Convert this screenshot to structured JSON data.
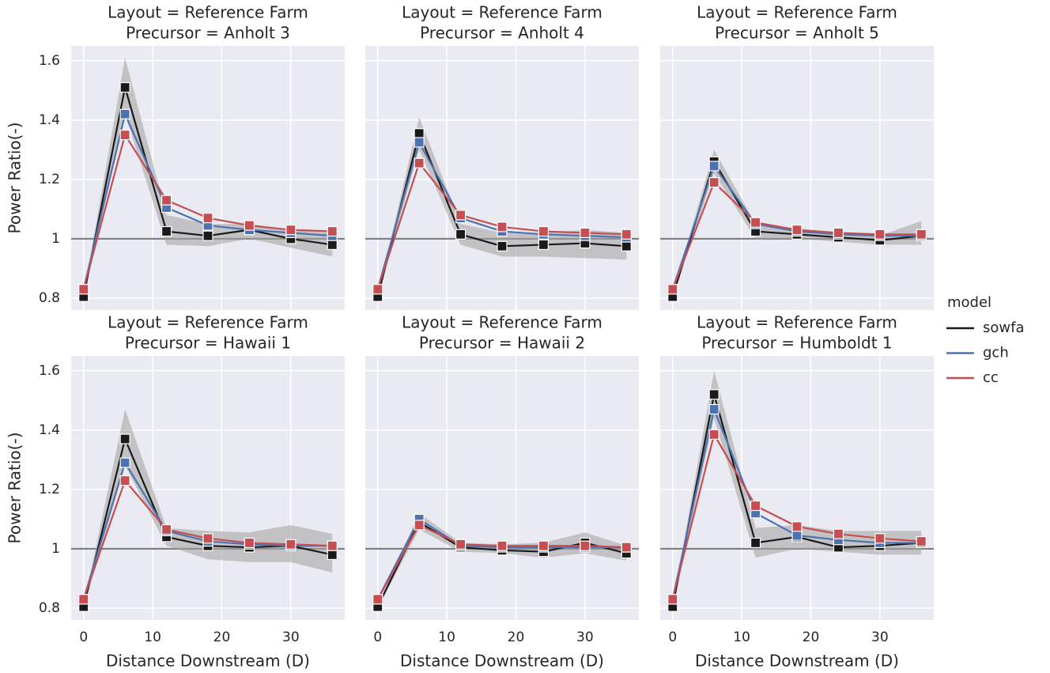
{
  "chart_data": [
    {
      "type": "line",
      "title": "Layout = Reference Farm",
      "subtitle": "Precursor = Anholt 3",
      "ylabel": "Power Ratio(-)",
      "x": [
        0,
        6,
        12,
        18,
        24,
        30,
        36
      ],
      "series": [
        {
          "name": "sowfa",
          "color": "#1a1a1a",
          "values": [
            0.805,
            1.51,
            1.025,
            1.01,
            1.03,
            1.0,
            0.98
          ],
          "ci_lower": [
            0.8,
            1.42,
            0.98,
            0.975,
            1.0,
            0.97,
            0.94
          ],
          "ci_upper": [
            0.81,
            1.61,
            1.08,
            1.05,
            1.05,
            1.03,
            1.02
          ]
        },
        {
          "name": "gch",
          "color": "#4c72b0",
          "values": [
            0.83,
            1.42,
            1.105,
            1.045,
            1.03,
            1.02,
            1.01
          ]
        },
        {
          "name": "cc",
          "color": "#c44e52",
          "values": [
            0.83,
            1.35,
            1.13,
            1.07,
            1.045,
            1.03,
            1.025
          ]
        }
      ],
      "xlim": [
        -1.8,
        37.8
      ],
      "ylim": [
        0.76,
        1.65
      ],
      "xticks": [
        0,
        10,
        20,
        30
      ],
      "yticks": [
        0.8,
        1.0,
        1.2,
        1.4,
        1.6
      ],
      "hline": 1.0,
      "grid": true
    },
    {
      "type": "line",
      "title": "Layout = Reference Farm",
      "subtitle": "Precursor = Anholt 4",
      "x": [
        0,
        6,
        12,
        18,
        24,
        30,
        36
      ],
      "series": [
        {
          "name": "sowfa",
          "color": "#1a1a1a",
          "values": [
            0.805,
            1.355,
            1.015,
            0.975,
            0.98,
            0.985,
            0.975
          ],
          "ci_lower": [
            0.8,
            1.3,
            0.98,
            0.94,
            0.94,
            0.935,
            0.93
          ],
          "ci_upper": [
            0.81,
            1.41,
            1.05,
            1.02,
            1.02,
            1.03,
            1.02
          ]
        },
        {
          "name": "gch",
          "color": "#4c72b0",
          "values": [
            0.83,
            1.325,
            1.07,
            1.025,
            1.015,
            1.01,
            1.005
          ]
        },
        {
          "name": "cc",
          "color": "#c44e52",
          "values": [
            0.83,
            1.255,
            1.08,
            1.04,
            1.025,
            1.02,
            1.015
          ]
        }
      ],
      "xlim": [
        -1.8,
        37.8
      ],
      "ylim": [
        0.76,
        1.65
      ],
      "xticks": [
        0,
        10,
        20,
        30
      ],
      "yticks": [
        0.8,
        1.0,
        1.2,
        1.4,
        1.6
      ],
      "hline": 1.0,
      "grid": true
    },
    {
      "type": "line",
      "title": "Layout = Reference Farm",
      "subtitle": "Precursor = Anholt 5",
      "x": [
        0,
        6,
        12,
        18,
        24,
        30,
        36
      ],
      "series": [
        {
          "name": "sowfa",
          "color": "#1a1a1a",
          "values": [
            0.805,
            1.26,
            1.025,
            1.015,
            1.005,
            0.995,
            1.01
          ],
          "ci_lower": [
            0.8,
            1.22,
            1.0,
            1.0,
            0.99,
            0.98,
            0.98
          ],
          "ci_upper": [
            0.81,
            1.3,
            1.05,
            1.035,
            1.02,
            1.01,
            1.06
          ]
        },
        {
          "name": "gch",
          "color": "#4c72b0",
          "values": [
            0.83,
            1.245,
            1.05,
            1.025,
            1.015,
            1.01,
            1.01
          ]
        },
        {
          "name": "cc",
          "color": "#c44e52",
          "values": [
            0.83,
            1.19,
            1.055,
            1.03,
            1.02,
            1.015,
            1.015
          ]
        }
      ],
      "xlim": [
        -1.8,
        37.8
      ],
      "ylim": [
        0.76,
        1.65
      ],
      "xticks": [
        0,
        10,
        20,
        30
      ],
      "yticks": [
        0.8,
        1.0,
        1.2,
        1.4,
        1.6
      ],
      "hline": 1.0,
      "grid": true
    },
    {
      "type": "line",
      "title": "Layout = Reference Farm",
      "subtitle": "Precursor = Hawaii 1",
      "ylabel": "Power Ratio(-)",
      "xlabel": "Distance Downstream (D)",
      "x": [
        0,
        6,
        12,
        18,
        24,
        30,
        36
      ],
      "series": [
        {
          "name": "sowfa",
          "color": "#1a1a1a",
          "values": [
            0.805,
            1.37,
            1.04,
            1.01,
            1.005,
            1.01,
            0.98
          ],
          "ci_lower": [
            0.8,
            1.28,
            1.01,
            0.965,
            0.955,
            0.955,
            0.92
          ],
          "ci_upper": [
            0.81,
            1.47,
            1.07,
            1.06,
            1.055,
            1.08,
            1.05
          ]
        },
        {
          "name": "gch",
          "color": "#4c72b0",
          "values": [
            0.83,
            1.29,
            1.06,
            1.025,
            1.015,
            1.01,
            1.01
          ]
        },
        {
          "name": "cc",
          "color": "#c44e52",
          "values": [
            0.83,
            1.23,
            1.065,
            1.035,
            1.02,
            1.015,
            1.01
          ]
        }
      ],
      "xlim": [
        -1.8,
        37.8
      ],
      "ylim": [
        0.76,
        1.65
      ],
      "xticks": [
        0,
        10,
        20,
        30
      ],
      "yticks": [
        0.8,
        1.0,
        1.2,
        1.4,
        1.6
      ],
      "hline": 1.0,
      "grid": true
    },
    {
      "type": "line",
      "title": "Layout = Reference Farm",
      "subtitle": "Precursor = Hawaii 2",
      "xlabel": "Distance Downstream (D)",
      "x": [
        0,
        6,
        12,
        18,
        24,
        30,
        36
      ],
      "series": [
        {
          "name": "sowfa",
          "color": "#1a1a1a",
          "values": [
            0.805,
            1.09,
            1.005,
            0.995,
            0.99,
            1.02,
            0.985
          ],
          "ci_lower": [
            0.8,
            1.065,
            0.99,
            0.985,
            0.97,
            0.985,
            0.96
          ],
          "ci_upper": [
            0.81,
            1.12,
            1.02,
            1.015,
            1.02,
            1.055,
            1.01
          ]
        },
        {
          "name": "gch",
          "color": "#4c72b0",
          "values": [
            0.83,
            1.1,
            1.01,
            1.005,
            1.005,
            1.005,
            1.005
          ]
        },
        {
          "name": "cc",
          "color": "#c44e52",
          "values": [
            0.83,
            1.08,
            1.015,
            1.01,
            1.01,
            1.01,
            1.005
          ]
        }
      ],
      "xlim": [
        -1.8,
        37.8
      ],
      "ylim": [
        0.76,
        1.65
      ],
      "xticks": [
        0,
        10,
        20,
        30
      ],
      "yticks": [
        0.8,
        1.0,
        1.2,
        1.4,
        1.6
      ],
      "hline": 1.0,
      "grid": true
    },
    {
      "type": "line",
      "title": "Layout = Reference Farm",
      "subtitle": "Precursor = Humboldt 1",
      "xlabel": "Distance Downstream (D)",
      "x": [
        0,
        6,
        12,
        18,
        24,
        30,
        36
      ],
      "series": [
        {
          "name": "sowfa",
          "color": "#1a1a1a",
          "values": [
            0.805,
            1.52,
            1.02,
            1.04,
            1.005,
            1.01,
            1.02
          ],
          "ci_lower": [
            0.8,
            1.44,
            0.97,
            1.0,
            0.99,
            0.98,
            0.98
          ],
          "ci_upper": [
            0.81,
            1.6,
            1.07,
            1.08,
            1.06,
            1.06,
            1.06
          ]
        },
        {
          "name": "gch",
          "color": "#4c72b0",
          "values": [
            0.83,
            1.47,
            1.12,
            1.045,
            1.03,
            1.02,
            1.02
          ]
        },
        {
          "name": "cc",
          "color": "#c44e52",
          "values": [
            0.83,
            1.385,
            1.145,
            1.075,
            1.05,
            1.035,
            1.025
          ]
        }
      ],
      "xlim": [
        -1.8,
        37.8
      ],
      "ylim": [
        0.76,
        1.65
      ],
      "xticks": [
        0,
        10,
        20,
        30
      ],
      "yticks": [
        0.8,
        1.0,
        1.2,
        1.4,
        1.6
      ],
      "hline": 1.0,
      "grid": true
    }
  ],
  "legend": {
    "title": "model"
  }
}
